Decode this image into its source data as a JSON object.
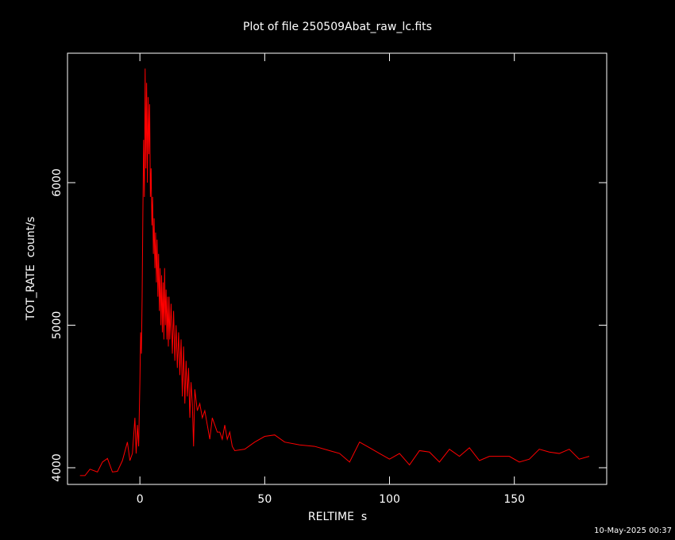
{
  "chart_data": {
    "type": "line",
    "title": "Plot of file 250509Abat_raw_lc.fits",
    "xlabel": "RELTIME  s",
    "ylabel": "TOT_RATE  count/s",
    "timestamp": "10-May-2025 00:37",
    "xlim": [
      -29,
      187
    ],
    "ylim": [
      3883,
      6908
    ],
    "xticks": [
      0,
      50,
      100,
      150
    ],
    "yticks": [
      4000,
      5000,
      6000
    ],
    "x": [
      -24,
      -22,
      -20,
      -17,
      -15,
      -13,
      -11,
      -9,
      -7,
      -5,
      -4,
      -3,
      -2,
      -1.5,
      -1,
      -0.5,
      0,
      0.3,
      0.6,
      0.9,
      1.2,
      1.5,
      1.8,
      2.1,
      2.4,
      2.7,
      3,
      3.3,
      3.6,
      3.9,
      4.2,
      4.5,
      4.8,
      5.1,
      5.4,
      5.7,
      6,
      6.3,
      6.6,
      6.9,
      7.2,
      7.5,
      7.8,
      8.1,
      8.4,
      8.7,
      9,
      9.3,
      9.6,
      9.9,
      10.2,
      10.5,
      10.8,
      11.1,
      11.4,
      11.7,
      12,
      12.5,
      13,
      13.5,
      14,
      14.5,
      15,
      15.5,
      16,
      16.5,
      17,
      17.5,
      18,
      18.5,
      19,
      19.5,
      20,
      20.5,
      21,
      21.5,
      22,
      23,
      24,
      25,
      26,
      27,
      28,
      29,
      30,
      31,
      32,
      33,
      34,
      35,
      36,
      37,
      38,
      42,
      46,
      50,
      54,
      58,
      64,
      70,
      76,
      80,
      84,
      88,
      92,
      96,
      100,
      104,
      108,
      112,
      116,
      120,
      124,
      128,
      132,
      136,
      140,
      144,
      148,
      152,
      156,
      160,
      164,
      168,
      172,
      176,
      180
    ],
    "series": [
      {
        "name": "TOT_RATE",
        "color": "#ff0000",
        "values": [
          3945,
          3945,
          3990,
          3970,
          4040,
          4065,
          3970,
          3975,
          4050,
          4180,
          4050,
          4100,
          4350,
          4100,
          4300,
          4150,
          4600,
          4950,
          4800,
          5200,
          5800,
          6300,
          5900,
          6800,
          6100,
          6700,
          6000,
          6600,
          6200,
          6550,
          5900,
          6100,
          5700,
          5900,
          5500,
          5750,
          5400,
          5650,
          5300,
          5600,
          5200,
          5500,
          5100,
          5400,
          5000,
          5350,
          4950,
          5300,
          4900,
          5400,
          5000,
          5250,
          4900,
          5200,
          4850,
          5200,
          4900,
          5150,
          4800,
          5100,
          4750,
          5000,
          4700,
          4950,
          4650,
          4900,
          4500,
          4850,
          4450,
          4750,
          4500,
          4700,
          4350,
          4600,
          4450,
          4150,
          4550,
          4400,
          4450,
          4350,
          4400,
          4300,
          4200,
          4350,
          4300,
          4250,
          4250,
          4200,
          4300,
          4200,
          4250,
          4150,
          4120,
          4130,
          4180,
          4220,
          4230,
          4180,
          4160,
          4150,
          4120,
          4100,
          4040,
          4180,
          4140,
          4100,
          4060,
          4100,
          4020,
          4120,
          4110,
          4040,
          4130,
          4080,
          4140,
          4050,
          4080,
          4080,
          4080,
          4040,
          4060,
          4130,
          4110,
          4100,
          4130,
          4060,
          4080
        ]
      }
    ]
  }
}
